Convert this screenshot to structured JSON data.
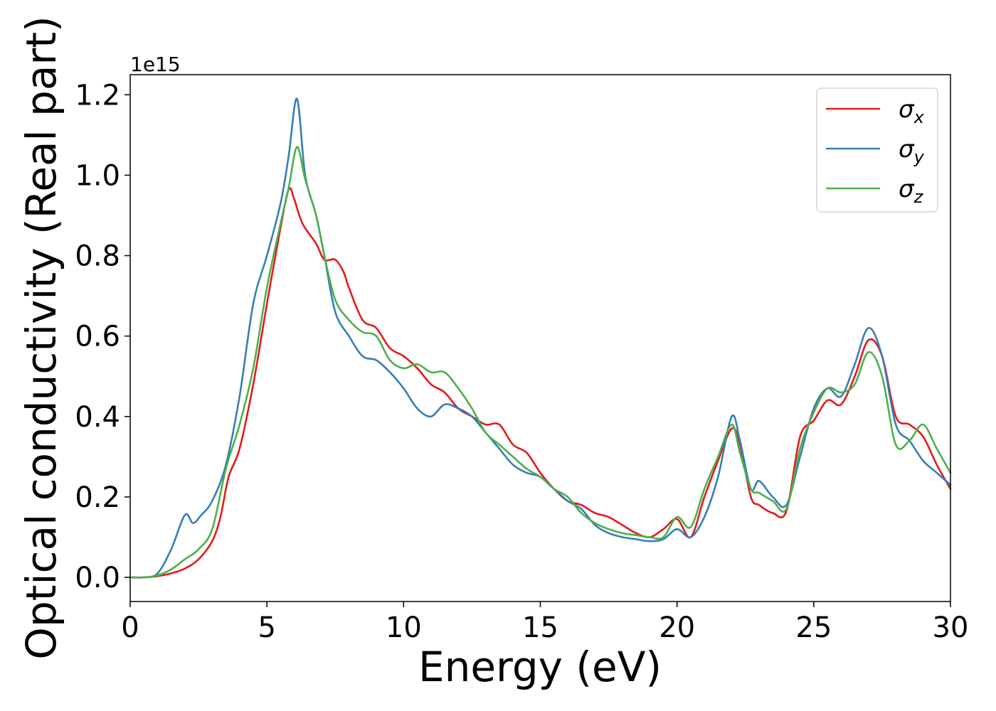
{
  "chart_data": {
    "type": "line",
    "xlabel": "Energy (eV)",
    "ylabel": "Optical conductivity (Real part)",
    "y_offset_text": "1e15",
    "xlim": [
      0,
      30
    ],
    "ylim": [
      -0.06,
      1.25
    ],
    "x_ticks": [
      0,
      5,
      10,
      15,
      20,
      25,
      30
    ],
    "x_tick_labels": [
      "0",
      "5",
      "10",
      "15",
      "20",
      "25",
      "30"
    ],
    "y_ticks": [
      0.0,
      0.2,
      0.4,
      0.6,
      0.8,
      1.0,
      1.2
    ],
    "y_tick_labels": [
      "0.0",
      "0.2",
      "0.4",
      "0.6",
      "0.8",
      "1.0",
      "1.2"
    ],
    "grid": false,
    "legend_position": "top-right",
    "series": [
      {
        "name": "σx",
        "legend_symbol": "σ",
        "legend_subscript": "x",
        "color": "#e41a1c",
        "points": [
          [
            0,
            0
          ],
          [
            0.5,
            0.0
          ],
          [
            1.0,
            0.003
          ],
          [
            1.5,
            0.01
          ],
          [
            2.0,
            0.022
          ],
          [
            2.5,
            0.045
          ],
          [
            3.0,
            0.09
          ],
          [
            3.3,
            0.15
          ],
          [
            3.6,
            0.25
          ],
          [
            4.0,
            0.32
          ],
          [
            4.5,
            0.48
          ],
          [
            5.0,
            0.68
          ],
          [
            5.5,
            0.87
          ],
          [
            5.8,
            0.965
          ],
          [
            6.0,
            0.94
          ],
          [
            6.3,
            0.88
          ],
          [
            6.8,
            0.83
          ],
          [
            7.1,
            0.79
          ],
          [
            7.5,
            0.79
          ],
          [
            7.8,
            0.76
          ],
          [
            8.0,
            0.72
          ],
          [
            8.5,
            0.64
          ],
          [
            9.0,
            0.62
          ],
          [
            9.5,
            0.57
          ],
          [
            10.0,
            0.55
          ],
          [
            10.5,
            0.52
          ],
          [
            11.0,
            0.48
          ],
          [
            11.5,
            0.46
          ],
          [
            12.0,
            0.42
          ],
          [
            12.5,
            0.4
          ],
          [
            13.0,
            0.38
          ],
          [
            13.5,
            0.38
          ],
          [
            14.0,
            0.33
          ],
          [
            14.5,
            0.31
          ],
          [
            15.0,
            0.26
          ],
          [
            15.5,
            0.22
          ],
          [
            16.0,
            0.19
          ],
          [
            16.5,
            0.18
          ],
          [
            17.0,
            0.16
          ],
          [
            17.5,
            0.15
          ],
          [
            18.0,
            0.13
          ],
          [
            18.5,
            0.11
          ],
          [
            19.0,
            0.1
          ],
          [
            19.5,
            0.12
          ],
          [
            20.0,
            0.145
          ],
          [
            20.5,
            0.1
          ],
          [
            21.0,
            0.2
          ],
          [
            21.5,
            0.29
          ],
          [
            22.0,
            0.37
          ],
          [
            22.3,
            0.33
          ],
          [
            22.7,
            0.2
          ],
          [
            23.0,
            0.18
          ],
          [
            23.5,
            0.16
          ],
          [
            24.0,
            0.165
          ],
          [
            24.5,
            0.35
          ],
          [
            25.0,
            0.39
          ],
          [
            25.5,
            0.44
          ],
          [
            26.0,
            0.43
          ],
          [
            26.5,
            0.5
          ],
          [
            27.0,
            0.59
          ],
          [
            27.5,
            0.55
          ],
          [
            28.0,
            0.4
          ],
          [
            28.5,
            0.38
          ],
          [
            29.0,
            0.35
          ],
          [
            29.5,
            0.28
          ],
          [
            30.0,
            0.22
          ]
        ]
      },
      {
        "name": "σy",
        "legend_symbol": "σ",
        "legend_subscript": "y",
        "color": "#377eb8",
        "points": [
          [
            0,
            0
          ],
          [
            0.5,
            0.0
          ],
          [
            1.0,
            0.01
          ],
          [
            1.5,
            0.07
          ],
          [
            2.0,
            0.155
          ],
          [
            2.3,
            0.135
          ],
          [
            2.6,
            0.155
          ],
          [
            3.0,
            0.19
          ],
          [
            3.5,
            0.28
          ],
          [
            4.0,
            0.45
          ],
          [
            4.5,
            0.68
          ],
          [
            5.0,
            0.8
          ],
          [
            5.5,
            0.93
          ],
          [
            5.8,
            1.05
          ],
          [
            6.1,
            1.19
          ],
          [
            6.4,
            1.0
          ],
          [
            6.8,
            0.9
          ],
          [
            7.1,
            0.8
          ],
          [
            7.5,
            0.66
          ],
          [
            8.0,
            0.6
          ],
          [
            8.5,
            0.55
          ],
          [
            9.0,
            0.54
          ],
          [
            9.5,
            0.51
          ],
          [
            10.0,
            0.47
          ],
          [
            10.5,
            0.42
          ],
          [
            11.0,
            0.4
          ],
          [
            11.5,
            0.43
          ],
          [
            12.0,
            0.42
          ],
          [
            12.5,
            0.4
          ],
          [
            13.0,
            0.36
          ],
          [
            13.5,
            0.32
          ],
          [
            14.0,
            0.28
          ],
          [
            14.5,
            0.26
          ],
          [
            15.0,
            0.25
          ],
          [
            15.5,
            0.22
          ],
          [
            16.0,
            0.19
          ],
          [
            16.5,
            0.17
          ],
          [
            17.0,
            0.13
          ],
          [
            17.5,
            0.11
          ],
          [
            18.0,
            0.1
          ],
          [
            18.5,
            0.095
          ],
          [
            19.0,
            0.09
          ],
          [
            19.5,
            0.095
          ],
          [
            20.0,
            0.12
          ],
          [
            20.5,
            0.1
          ],
          [
            21.0,
            0.15
          ],
          [
            21.5,
            0.25
          ],
          [
            22.0,
            0.4
          ],
          [
            22.3,
            0.34
          ],
          [
            22.7,
            0.22
          ],
          [
            23.0,
            0.24
          ],
          [
            23.5,
            0.2
          ],
          [
            24.0,
            0.18
          ],
          [
            24.5,
            0.3
          ],
          [
            25.0,
            0.42
          ],
          [
            25.5,
            0.47
          ],
          [
            26.0,
            0.45
          ],
          [
            26.5,
            0.53
          ],
          [
            27.0,
            0.62
          ],
          [
            27.5,
            0.55
          ],
          [
            28.0,
            0.38
          ],
          [
            28.5,
            0.34
          ],
          [
            29.0,
            0.29
          ],
          [
            29.5,
            0.26
          ],
          [
            30.0,
            0.23
          ]
        ]
      },
      {
        "name": "σz",
        "legend_symbol": "σ",
        "legend_subscript": "z",
        "color": "#4daf4a",
        "points": [
          [
            0,
            0
          ],
          [
            0.5,
            0.0
          ],
          [
            1.0,
            0.005
          ],
          [
            1.5,
            0.02
          ],
          [
            2.0,
            0.045
          ],
          [
            2.5,
            0.07
          ],
          [
            3.0,
            0.12
          ],
          [
            3.5,
            0.27
          ],
          [
            4.0,
            0.38
          ],
          [
            4.5,
            0.52
          ],
          [
            5.0,
            0.72
          ],
          [
            5.5,
            0.88
          ],
          [
            5.8,
            0.97
          ],
          [
            6.1,
            1.07
          ],
          [
            6.4,
            0.99
          ],
          [
            6.8,
            0.9
          ],
          [
            7.1,
            0.8
          ],
          [
            7.5,
            0.69
          ],
          [
            8.0,
            0.64
          ],
          [
            8.5,
            0.61
          ],
          [
            9.0,
            0.6
          ],
          [
            9.5,
            0.54
          ],
          [
            10.0,
            0.52
          ],
          [
            10.5,
            0.53
          ],
          [
            11.0,
            0.51
          ],
          [
            11.5,
            0.51
          ],
          [
            12.0,
            0.47
          ],
          [
            12.5,
            0.42
          ],
          [
            13.0,
            0.36
          ],
          [
            13.5,
            0.33
          ],
          [
            14.0,
            0.3
          ],
          [
            14.5,
            0.27
          ],
          [
            15.0,
            0.25
          ],
          [
            15.5,
            0.22
          ],
          [
            16.0,
            0.2
          ],
          [
            16.5,
            0.16
          ],
          [
            17.0,
            0.135
          ],
          [
            17.5,
            0.12
          ],
          [
            18.0,
            0.11
          ],
          [
            18.5,
            0.105
          ],
          [
            19.0,
            0.1
          ],
          [
            19.5,
            0.1
          ],
          [
            20.0,
            0.15
          ],
          [
            20.5,
            0.125
          ],
          [
            21.0,
            0.22
          ],
          [
            21.5,
            0.3
          ],
          [
            22.0,
            0.38
          ],
          [
            22.3,
            0.31
          ],
          [
            22.7,
            0.22
          ],
          [
            23.0,
            0.21
          ],
          [
            23.5,
            0.19
          ],
          [
            24.0,
            0.17
          ],
          [
            24.5,
            0.32
          ],
          [
            25.0,
            0.41
          ],
          [
            25.5,
            0.47
          ],
          [
            26.0,
            0.46
          ],
          [
            26.5,
            0.48
          ],
          [
            27.0,
            0.56
          ],
          [
            27.5,
            0.5
          ],
          [
            28.0,
            0.33
          ],
          [
            28.5,
            0.34
          ],
          [
            29.0,
            0.38
          ],
          [
            29.5,
            0.32
          ],
          [
            30.0,
            0.26
          ]
        ]
      }
    ]
  }
}
